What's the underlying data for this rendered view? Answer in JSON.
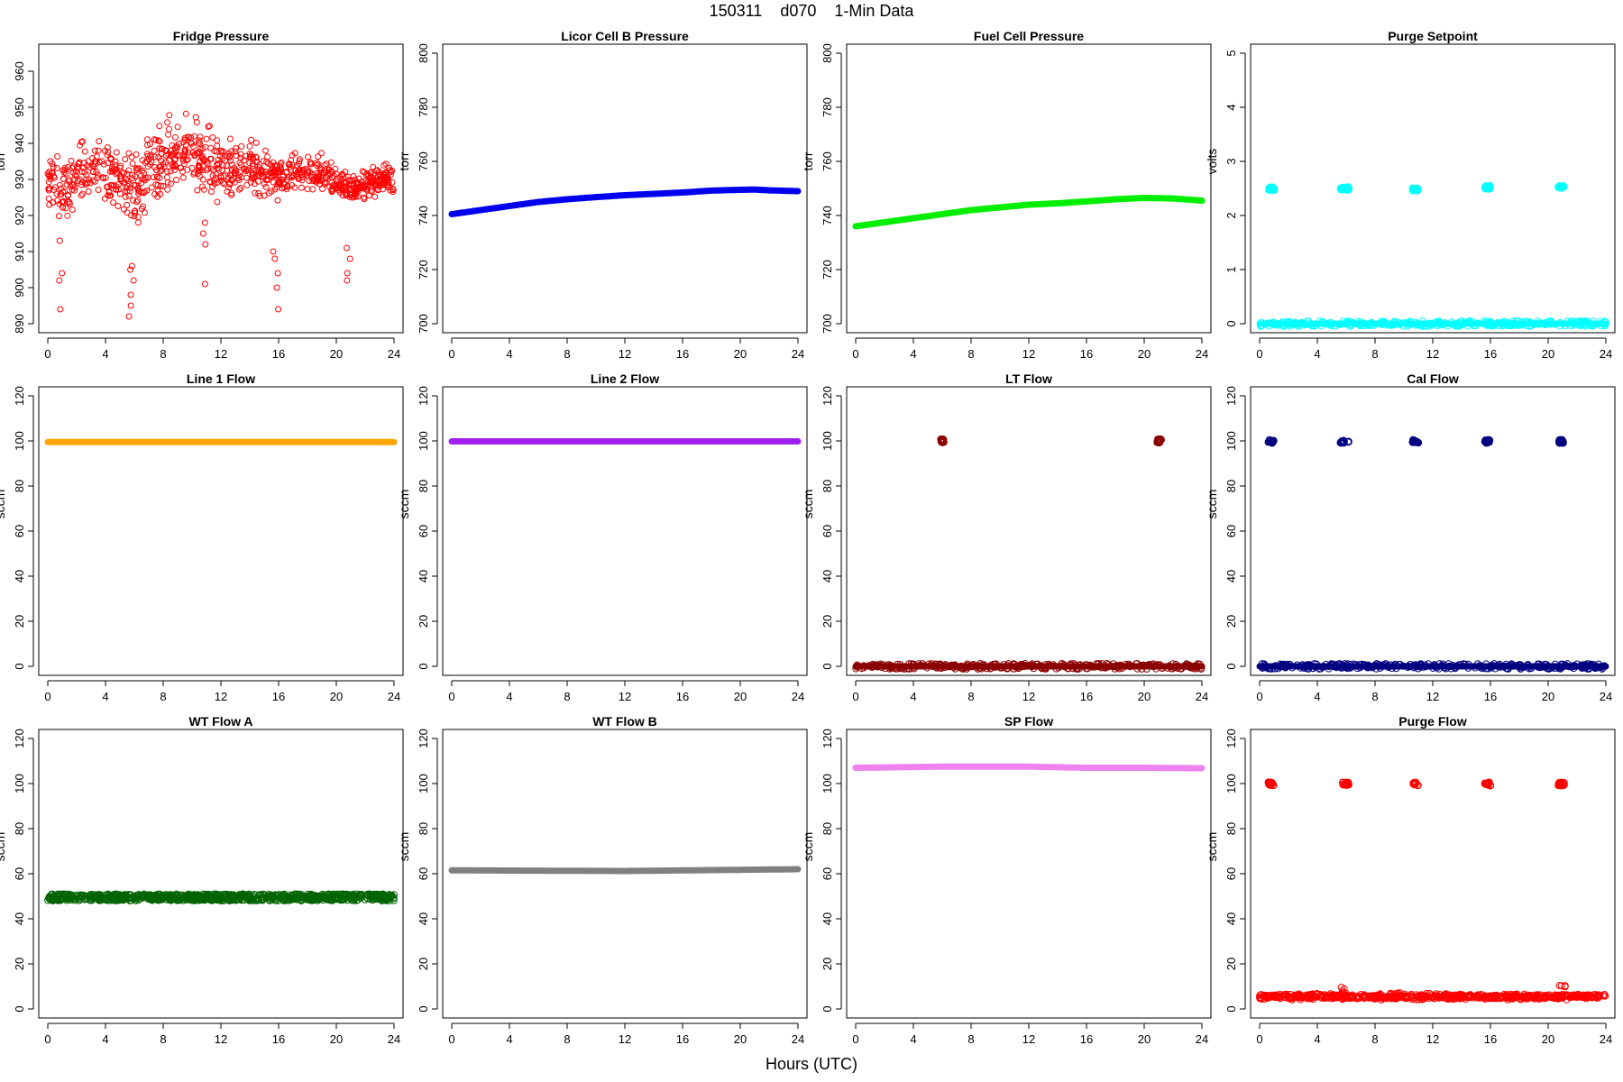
{
  "figure": {
    "title": "150311    d070    1-Min Data",
    "xlabel": "Hours (UTC)"
  },
  "chart_data": [
    {
      "type": "scatter",
      "title": "Fridge Pressure",
      "ylabel": "torr",
      "xlim": [
        0,
        24
      ],
      "ylim": [
        890,
        965
      ],
      "xticks": [
        0,
        4,
        8,
        12,
        16,
        20,
        24
      ],
      "yticks": [
        890,
        900,
        910,
        920,
        930,
        940,
        950,
        960
      ],
      "series": [
        {
          "color": "#ff0000",
          "marker": "open-circle",
          "x": [
            0,
            0.5,
            1,
            1.5,
            2,
            2.5,
            3,
            3.5,
            4,
            4.5,
            5,
            5.5,
            6,
            6.5,
            7,
            7.5,
            8,
            8.5,
            9,
            9.5,
            10,
            10.5,
            11,
            11.5,
            12,
            12.5,
            13,
            13.5,
            14,
            14.5,
            15,
            15.5,
            16,
            16.5,
            17,
            17.5,
            18,
            18.5,
            19,
            19.5,
            20,
            20.5,
            21,
            21.5,
            22,
            22.5,
            23,
            23.5,
            24
          ],
          "y": [
            930,
            928,
            927,
            929,
            931,
            932,
            933,
            932,
            931,
            930,
            929,
            928,
            927,
            929,
            932,
            934,
            935,
            936,
            937,
            937,
            936,
            936,
            935,
            934,
            933,
            932,
            932,
            933,
            934,
            933,
            932,
            931,
            930,
            931,
            932,
            933,
            933,
            932,
            932,
            931,
            930,
            929,
            928,
            928,
            929,
            930,
            930,
            930,
            929
          ],
          "spread": [
            8,
            9,
            10,
            10,
            11,
            11,
            11,
            11,
            11,
            10,
            10,
            10,
            11,
            12,
            12,
            12,
            12,
            12,
            12,
            12,
            12,
            12,
            12,
            11,
            11,
            10,
            10,
            9,
            9,
            9,
            8,
            8,
            8,
            7,
            7,
            6,
            6,
            6,
            6,
            6,
            6,
            6,
            5,
            5,
            5,
            5,
            5,
            5,
            5
          ],
          "dips": [
            {
              "x": 0.8,
              "y": [
                894,
                902,
                904,
                913
              ]
            },
            {
              "x": 5.8,
              "y": [
                892,
                895,
                898,
                902,
                905,
                906
              ]
            },
            {
              "x": 10.8,
              "y": [
                901,
                912,
                915,
                918
              ]
            },
            {
              "x": 15.8,
              "y": [
                894,
                900,
                904,
                908,
                910
              ]
            },
            {
              "x": 20.9,
              "y": [
                902,
                904,
                908,
                911
              ]
            }
          ]
        }
      ]
    },
    {
      "type": "line",
      "title": "Licor Cell B Pressure",
      "ylabel": "torr",
      "xlim": [
        0,
        24
      ],
      "ylim": [
        700,
        800
      ],
      "xticks": [
        0,
        4,
        8,
        12,
        16,
        20,
        24
      ],
      "yticks": [
        700,
        720,
        740,
        760,
        780,
        800
      ],
      "series": [
        {
          "color": "#0000ee",
          "x": [
            0,
            2,
            4,
            6,
            8,
            10,
            12,
            14,
            16,
            18,
            20,
            21,
            22,
            24
          ],
          "y": [
            740.5,
            742,
            743.5,
            745,
            746,
            746.8,
            747.5,
            748,
            748.5,
            749.2,
            749.5,
            749.6,
            749.3,
            749
          ]
        }
      ]
    },
    {
      "type": "line",
      "title": "Fuel Cell Pressure",
      "ylabel": "torr",
      "xlim": [
        0,
        24
      ],
      "ylim": [
        700,
        800
      ],
      "xticks": [
        0,
        4,
        8,
        12,
        16,
        20,
        24
      ],
      "yticks": [
        700,
        720,
        740,
        760,
        780,
        800
      ],
      "series": [
        {
          "color": "#00ee00",
          "x": [
            0,
            2,
            4,
            6,
            8,
            10,
            12,
            14,
            16,
            18,
            20,
            22,
            24
          ],
          "y": [
            736,
            737.5,
            739,
            740.5,
            742,
            743,
            744,
            744.5,
            745.2,
            746,
            746.5,
            746.3,
            745.5
          ]
        }
      ]
    },
    {
      "type": "scatter",
      "title": "Purge Setpoint",
      "ylabel": "volts",
      "xlim": [
        0,
        24
      ],
      "ylim": [
        0,
        5
      ],
      "xticks": [
        0,
        4,
        8,
        12,
        16,
        20,
        24
      ],
      "yticks": [
        0,
        1,
        2,
        3,
        4,
        5
      ],
      "series": [
        {
          "color": "#00ffff",
          "baseline": 0,
          "clusters": [
            {
              "x": [
                0.6,
                1.0
              ],
              "y": 2.5
            },
            {
              "x": [
                5.6,
                6.2
              ],
              "y": 2.5
            },
            {
              "x": [
                10.6,
                11.0
              ],
              "y": 2.48
            },
            {
              "x": [
                15.6,
                16.0
              ],
              "y": 2.52
            },
            {
              "x": [
                20.7,
                21.1
              ],
              "y": 2.52
            }
          ]
        }
      ]
    },
    {
      "type": "line",
      "title": "Line 1 Flow",
      "ylabel": "sccm",
      "xlim": [
        0,
        24
      ],
      "ylim": [
        0,
        120
      ],
      "xticks": [
        0,
        4,
        8,
        12,
        16,
        20,
        24
      ],
      "yticks": [
        0,
        20,
        40,
        60,
        80,
        100,
        120
      ],
      "series": [
        {
          "color": "#ffa500",
          "x": [
            0,
            24
          ],
          "y": [
            99.5,
            99.5
          ]
        }
      ]
    },
    {
      "type": "line",
      "title": "Line 2 Flow",
      "ylabel": "sccm",
      "xlim": [
        0,
        24
      ],
      "ylim": [
        0,
        120
      ],
      "xticks": [
        0,
        4,
        8,
        12,
        16,
        20,
        24
      ],
      "yticks": [
        0,
        20,
        40,
        60,
        80,
        100,
        120
      ],
      "series": [
        {
          "color": "#a020f0",
          "x": [
            0,
            24
          ],
          "y": [
            99.8,
            99.8
          ]
        }
      ]
    },
    {
      "type": "scatter",
      "title": "LT Flow",
      "ylabel": "sccm",
      "xlim": [
        0,
        24
      ],
      "ylim": [
        0,
        120
      ],
      "xticks": [
        0,
        4,
        8,
        12,
        16,
        20,
        24
      ],
      "yticks": [
        0,
        20,
        40,
        60,
        80,
        100,
        120
      ],
      "series": [
        {
          "color": "#8b0000",
          "baseline": 0,
          "clusters": [
            {
              "x": [
                5.9,
                6.1
              ],
              "y": 100
            },
            {
              "x": [
                20.9,
                21.2
              ],
              "y": 100
            }
          ]
        }
      ]
    },
    {
      "type": "scatter",
      "title": "Cal Flow",
      "ylabel": "sccm",
      "xlim": [
        0,
        24
      ],
      "ylim": [
        0,
        120
      ],
      "xticks": [
        0,
        4,
        8,
        12,
        16,
        20,
        24
      ],
      "yticks": [
        0,
        20,
        40,
        60,
        80,
        100,
        120
      ],
      "series": [
        {
          "color": "#000080",
          "baseline": 0,
          "clusters": [
            {
              "x": [
                0.6,
                1.0
              ],
              "y": 99.8
            },
            {
              "x": [
                5.6,
                6.2
              ],
              "y": 99.8
            },
            {
              "x": [
                10.6,
                11.0
              ],
              "y": 99.8
            },
            {
              "x": [
                15.6,
                16.0
              ],
              "y": 99.8
            },
            {
              "x": [
                20.7,
                21.1
              ],
              "y": 99.8
            }
          ]
        }
      ]
    },
    {
      "type": "scatter",
      "title": "WT Flow A",
      "ylabel": "sccm",
      "xlim": [
        0,
        24
      ],
      "ylim": [
        0,
        120
      ],
      "xticks": [
        0,
        4,
        8,
        12,
        16,
        20,
        24
      ],
      "yticks": [
        0,
        20,
        40,
        60,
        80,
        100,
        120
      ],
      "series": [
        {
          "color": "#006400",
          "x": [
            0,
            24
          ],
          "y": [
            49.5,
            49.5
          ],
          "spread": 1.5
        }
      ]
    },
    {
      "type": "line",
      "title": "WT Flow B",
      "ylabel": "sccm",
      "xlim": [
        0,
        24
      ],
      "ylim": [
        0,
        120
      ],
      "xticks": [
        0,
        4,
        8,
        12,
        16,
        20,
        24
      ],
      "yticks": [
        0,
        20,
        40,
        60,
        80,
        100,
        120
      ],
      "series": [
        {
          "color": "#808080",
          "x": [
            0,
            12,
            24
          ],
          "y": [
            61.5,
            61.2,
            62
          ]
        }
      ]
    },
    {
      "type": "line",
      "title": "SP Flow",
      "ylabel": "sccm",
      "xlim": [
        0,
        24
      ],
      "ylim": [
        0,
        120
      ],
      "xticks": [
        0,
        4,
        8,
        12,
        16,
        20,
        24
      ],
      "yticks": [
        0,
        20,
        40,
        60,
        80,
        100,
        120
      ],
      "series": [
        {
          "color": "#ee82ee",
          "x": [
            0,
            6,
            12,
            16,
            20,
            24
          ],
          "y": [
            107,
            107.5,
            107.5,
            107,
            107,
            106.8
          ]
        }
      ]
    },
    {
      "type": "scatter",
      "title": "Purge Flow",
      "ylabel": "sccm",
      "xlim": [
        0,
        24
      ],
      "ylim": [
        0,
        120
      ],
      "xticks": [
        0,
        4,
        8,
        12,
        16,
        20,
        24
      ],
      "yticks": [
        0,
        20,
        40,
        60,
        80,
        100,
        120
      ],
      "series": [
        {
          "color": "#ff0000",
          "baseline": 5.5,
          "spread": 2,
          "clusters": [
            {
              "x": [
                0.6,
                1.0
              ],
              "y": 99.8
            },
            {
              "x": [
                5.6,
                6.2
              ],
              "y": 99.8
            },
            {
              "x": [
                10.6,
                11.0
              ],
              "y": 99.8
            },
            {
              "x": [
                15.6,
                16.0
              ],
              "y": 99.8
            },
            {
              "x": [
                20.7,
                21.1
              ],
              "y": 99.8
            }
          ],
          "bumps": [
            {
              "x": 5.9,
              "y": 10
            },
            {
              "x": 21.0,
              "y": 11
            }
          ]
        }
      ]
    }
  ]
}
